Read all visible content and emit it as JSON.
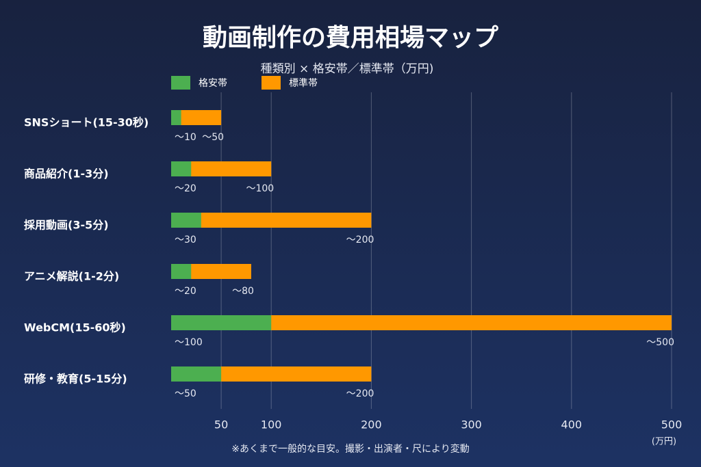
{
  "chart_data": {
    "type": "bar",
    "orientation": "horizontal",
    "title": "動画制作の費用相場マップ",
    "subtitle": "種類別 × 格安帯／標準帯（万円)",
    "categories": [
      "SNSショート(15-30秒)",
      "商品紹介(1-3分)",
      "採用動画(3-5分)",
      "アニメ解説(1-2分)",
      "WebCM(15-60秒)",
      "研修・教育(5-15分)"
    ],
    "series": [
      {
        "name": "格安帯",
        "color": "#4caf50",
        "values": [
          10,
          20,
          30,
          20,
          100,
          50
        ],
        "value_labels": [
          "〜10",
          "〜20",
          "〜30",
          "〜20",
          "〜100",
          "〜50"
        ]
      },
      {
        "name": "標準帯",
        "color": "#ff9800",
        "values": [
          50,
          100,
          200,
          80,
          500,
          200
        ],
        "value_labels": [
          "〜50",
          "〜100",
          "〜200",
          "〜80",
          "〜500",
          "〜200"
        ]
      }
    ],
    "xlim": [
      0,
      500
    ],
    "xticks": [
      50,
      100,
      200,
      300,
      400,
      500
    ],
    "x_unit": "(万円)",
    "grid": true,
    "note": "※あくまで一般的な目安。撮影・出演者・尺により変動"
  }
}
